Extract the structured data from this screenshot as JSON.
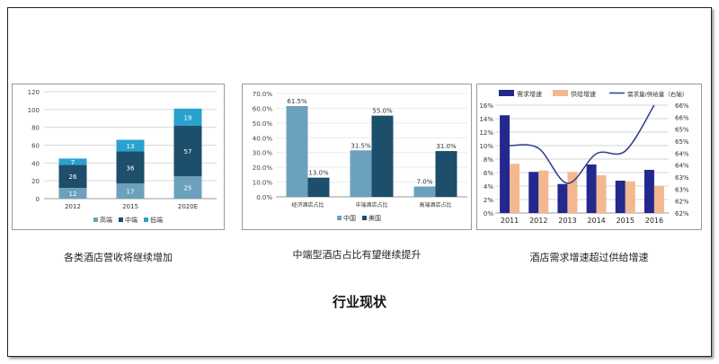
{
  "slide": {
    "title": "行业现状",
    "captions": [
      "各类酒店营收将继续增加",
      "中端型酒店占比有望继续提升",
      "酒店需求增速超过供给增速"
    ]
  },
  "colors": {
    "budget": "#6ba1bd",
    "mid": "#1d4e6b",
    "low": "#2aa2cf",
    "china": "#6ba1bd",
    "usa": "#1d4e6b",
    "demand": "#23288f",
    "supply": "#f3b890",
    "ratio": "#2e3d8a"
  },
  "chart_data": [
    {
      "type": "bar",
      "stacked": true,
      "categories": [
        "2012",
        "2015",
        "2020E"
      ],
      "series": [
        {
          "name": "高端",
          "values": [
            12,
            17,
            25
          ],
          "color_key": "budget"
        },
        {
          "name": "中端",
          "values": [
            26,
            36,
            57
          ],
          "color_key": "mid"
        },
        {
          "name": "低端",
          "values": [
            7,
            13,
            19
          ],
          "color_key": "low"
        }
      ],
      "ylim": [
        0,
        120
      ],
      "yticks": [
        "0",
        "20",
        "40",
        "60",
        "80",
        "100",
        "120"
      ],
      "legend_placement": "bottom"
    },
    {
      "type": "bar",
      "categories": [
        "经济酒店占比",
        "中端酒店占比",
        "高端酒店占比"
      ],
      "series": [
        {
          "name": "中国",
          "values": [
            61.5,
            31.5,
            7.0
          ],
          "labels": [
            "61.5%",
            "31.5%",
            "7.0%"
          ],
          "color_key": "china"
        },
        {
          "name": "美国",
          "values": [
            13.0,
            55.0,
            31.0
          ],
          "labels": [
            "13.0%",
            "55.0%",
            "31.0%"
          ],
          "color_key": "usa"
        }
      ],
      "ylim": [
        0,
        70
      ],
      "yticks": [
        "0.0%",
        "10.0%",
        "20.0%",
        "30.0%",
        "40.0%",
        "50.0%",
        "60.0%",
        "70.0%"
      ],
      "legend_placement": "bottom"
    },
    {
      "type": "bar",
      "categories": [
        "2011",
        "2012",
        "2013",
        "2014",
        "2015",
        "2016"
      ],
      "series": [
        {
          "name": "需求增速",
          "values": [
            14.5,
            6.1,
            4.3,
            7.2,
            4.8,
            6.4
          ],
          "color_key": "demand"
        },
        {
          "name": "供给增速",
          "values": [
            7.3,
            6.3,
            6.1,
            5.6,
            4.7,
            4.0
          ],
          "color_key": "supply"
        },
        {
          "name": "需求量/供给量（右轴）",
          "type": "line",
          "axis": "right",
          "values": [
            64.5,
            64.4,
            63.1,
            64.2,
            64.3,
            66.0
          ],
          "color_key": "ratio"
        }
      ],
      "ylim": [
        0,
        16
      ],
      "yticks": [
        "0%",
        "2%",
        "4%",
        "6%",
        "8%",
        "10%",
        "12%",
        "14%",
        "16%"
      ],
      "ylim_right": [
        62,
        66
      ],
      "yticks_right": [
        "62%",
        "62%",
        "63%",
        "63%",
        "64%",
        "64%",
        "65%",
        "65%",
        "66%",
        "66%"
      ],
      "legend_placement": "top"
    }
  ]
}
